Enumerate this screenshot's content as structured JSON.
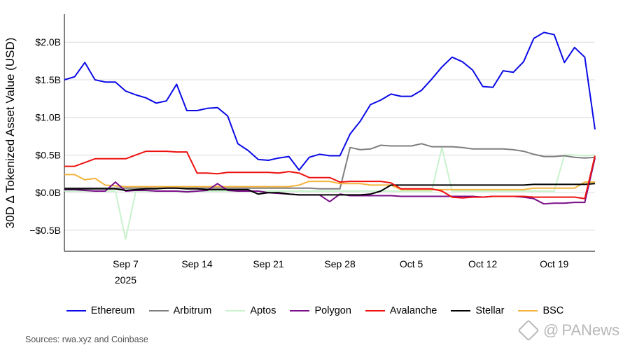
{
  "chart_data": {
    "type": "line",
    "title": "",
    "xlabel": "",
    "ylabel": "30D Δ Tokenized Asset Value (USD)",
    "ylim": [
      -0.78,
      2.3
    ],
    "y_ticks": [
      {
        "value": 2.0,
        "label": "$2.0B"
      },
      {
        "value": 1.5,
        "label": "$1.5B"
      },
      {
        "value": 1.0,
        "label": "$1.0B"
      },
      {
        "value": 0.5,
        "label": "$0.5B"
      },
      {
        "value": 0.0,
        "label": "$0.0B"
      },
      {
        "value": -0.5,
        "label": "−$0.5B"
      }
    ],
    "x_ticks": [
      {
        "date": "2025-09-07",
        "label": "Sep 7",
        "sublabel": "2025"
      },
      {
        "date": "2025-09-14",
        "label": "Sep 14"
      },
      {
        "date": "2025-09-21",
        "label": "Sep 21"
      },
      {
        "date": "2025-09-28",
        "label": "Sep 28"
      },
      {
        "date": "2025-10-05",
        "label": "Oct 5"
      },
      {
        "date": "2025-10-12",
        "label": "Oct 12"
      },
      {
        "date": "2025-10-19",
        "label": "Oct 19"
      }
    ],
    "x": [
      "2025-09-01",
      "2025-09-02",
      "2025-09-03",
      "2025-09-04",
      "2025-09-05",
      "2025-09-06",
      "2025-09-07",
      "2025-09-08",
      "2025-09-09",
      "2025-09-10",
      "2025-09-11",
      "2025-09-12",
      "2025-09-13",
      "2025-09-14",
      "2025-09-15",
      "2025-09-16",
      "2025-09-17",
      "2025-09-18",
      "2025-09-19",
      "2025-09-20",
      "2025-09-21",
      "2025-09-22",
      "2025-09-23",
      "2025-09-24",
      "2025-09-25",
      "2025-09-26",
      "2025-09-27",
      "2025-09-28",
      "2025-09-29",
      "2025-09-30",
      "2025-10-01",
      "2025-10-02",
      "2025-10-03",
      "2025-10-04",
      "2025-10-05",
      "2025-10-06",
      "2025-10-07",
      "2025-10-08",
      "2025-10-09",
      "2025-10-10",
      "2025-10-11",
      "2025-10-12",
      "2025-10-13",
      "2025-10-14",
      "2025-10-15",
      "2025-10-16",
      "2025-10-17",
      "2025-10-18",
      "2025-10-19",
      "2025-10-20",
      "2025-10-21",
      "2025-10-22",
      "2025-10-23"
    ],
    "grid": "horizontal",
    "legend_position": "bottom",
    "series": [
      {
        "name": "Ethereum",
        "color": "#0a0ae6",
        "values": [
          1.5,
          1.54,
          1.73,
          1.5,
          1.47,
          1.47,
          1.35,
          1.3,
          1.26,
          1.19,
          1.22,
          1.44,
          1.09,
          1.09,
          1.12,
          1.13,
          1.02,
          0.65,
          0.56,
          0.44,
          0.43,
          0.46,
          0.48,
          0.3,
          0.47,
          0.51,
          0.49,
          0.49,
          0.78,
          0.95,
          1.17,
          1.23,
          1.31,
          1.28,
          1.28,
          1.36,
          1.51,
          1.67,
          1.8,
          1.74,
          1.63,
          1.41,
          1.4,
          1.62,
          1.6,
          1.74,
          2.05,
          2.13,
          2.1,
          1.73,
          1.93,
          1.8,
          0.84
        ]
      },
      {
        "name": "Arbitrum",
        "color": "#7f7f7f",
        "values": [
          0.06,
          0.06,
          0.06,
          0.06,
          0.06,
          0.06,
          0.06,
          0.06,
          0.06,
          0.06,
          0.06,
          0.06,
          0.06,
          0.06,
          0.06,
          0.06,
          0.06,
          0.06,
          0.06,
          0.06,
          0.06,
          0.06,
          0.06,
          0.06,
          0.06,
          0.05,
          0.05,
          0.05,
          0.6,
          0.57,
          0.58,
          0.63,
          0.62,
          0.62,
          0.62,
          0.65,
          0.61,
          0.61,
          0.61,
          0.6,
          0.58,
          0.58,
          0.58,
          0.58,
          0.57,
          0.55,
          0.51,
          0.48,
          0.48,
          0.49,
          0.47,
          0.46,
          0.47
        ]
      },
      {
        "name": "Aptos",
        "color": "#c9f2cd",
        "values": [
          0.02,
          0.02,
          0.02,
          0.02,
          0.02,
          0.02,
          -0.62,
          0.02,
          0.02,
          0.02,
          0.02,
          0.02,
          0.02,
          0.02,
          0.02,
          0.02,
          0.02,
          0.02,
          0.02,
          0.02,
          0.02,
          0.02,
          0.02,
          0.02,
          0.02,
          0.02,
          0.02,
          0.02,
          0.02,
          0.02,
          0.02,
          0.02,
          0.02,
          0.02,
          0.02,
          0.02,
          0.02,
          0.6,
          0.02,
          0.02,
          0.02,
          0.02,
          0.02,
          0.02,
          0.02,
          0.02,
          0.02,
          0.02,
          0.02,
          0.5,
          0.5,
          0.49,
          0.5
        ]
      },
      {
        "name": "Polygon",
        "color": "#7b0f8a",
        "values": [
          0.04,
          0.04,
          0.03,
          0.02,
          0.02,
          0.14,
          0.02,
          0.03,
          0.03,
          0.02,
          0.02,
          0.02,
          0.01,
          0.02,
          0.03,
          0.12,
          0.03,
          0.02,
          0.02,
          0.02,
          0.0,
          -0.01,
          -0.02,
          -0.03,
          -0.03,
          -0.03,
          -0.12,
          -0.02,
          -0.04,
          -0.04,
          -0.04,
          -0.04,
          -0.04,
          -0.05,
          -0.05,
          -0.05,
          -0.05,
          -0.05,
          -0.05,
          -0.05,
          -0.05,
          -0.06,
          -0.05,
          -0.05,
          -0.05,
          -0.06,
          -0.08,
          -0.15,
          -0.14,
          -0.14,
          -0.13,
          -0.13,
          0.46
        ]
      },
      {
        "name": "Avalanche",
        "color": "#ee1111",
        "values": [
          0.35,
          0.35,
          0.4,
          0.45,
          0.45,
          0.45,
          0.45,
          0.5,
          0.55,
          0.55,
          0.55,
          0.54,
          0.54,
          0.26,
          0.26,
          0.25,
          0.27,
          0.27,
          0.27,
          0.27,
          0.27,
          0.26,
          0.28,
          0.26,
          0.2,
          0.2,
          0.2,
          0.14,
          0.15,
          0.15,
          0.15,
          0.15,
          0.13,
          0.05,
          0.05,
          0.05,
          0.05,
          0.02,
          -0.06,
          -0.07,
          -0.06,
          -0.06,
          -0.05,
          -0.05,
          -0.05,
          -0.05,
          -0.06,
          -0.06,
          -0.06,
          -0.06,
          -0.06,
          -0.08,
          0.49
        ]
      },
      {
        "name": "Stellar",
        "color": "#000000",
        "values": [
          0.05,
          0.05,
          0.05,
          0.05,
          0.05,
          0.05,
          0.03,
          0.04,
          0.05,
          0.05,
          0.06,
          0.06,
          0.05,
          0.05,
          0.04,
          0.04,
          0.04,
          0.04,
          0.04,
          -0.02,
          0.0,
          0.0,
          -0.02,
          -0.03,
          -0.03,
          -0.03,
          -0.03,
          -0.03,
          -0.03,
          -0.03,
          -0.02,
          0.02,
          0.1,
          0.1,
          0.1,
          0.1,
          0.1,
          0.1,
          0.1,
          0.1,
          0.1,
          0.1,
          0.1,
          0.1,
          0.1,
          0.1,
          0.11,
          0.11,
          0.11,
          0.11,
          0.11,
          0.11,
          0.12
        ]
      },
      {
        "name": "BSC",
        "color": "#f3b33c",
        "values": [
          0.24,
          0.24,
          0.17,
          0.19,
          0.1,
          0.09,
          0.08,
          0.08,
          0.08,
          0.08,
          0.08,
          0.08,
          0.08,
          0.08,
          0.08,
          0.08,
          0.08,
          0.08,
          0.08,
          0.08,
          0.08,
          0.08,
          0.08,
          0.1,
          0.15,
          0.15,
          0.15,
          0.12,
          0.12,
          0.12,
          0.1,
          0.1,
          0.1,
          0.04,
          0.04,
          0.04,
          0.04,
          0.04,
          0.04,
          0.04,
          0.04,
          0.04,
          0.04,
          0.04,
          0.04,
          0.04,
          0.06,
          0.06,
          0.06,
          0.06,
          0.06,
          0.14,
          0.14
        ]
      }
    ],
    "source": "Sources: rwa.xyz and Coinbase"
  },
  "watermark": {
    "text": "PANews",
    "symbol": "@",
    "icon": "panews-logo-icon"
  }
}
